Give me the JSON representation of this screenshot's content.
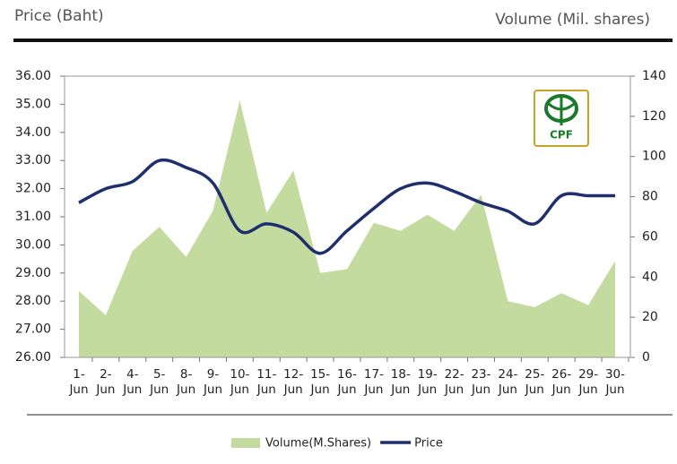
{
  "chart_data": {
    "type": "area-line",
    "left_axis_title": "Price (Baht)",
    "right_axis_title": "Volume (Mil. shares)",
    "logo_text": "CPF",
    "categories": [
      "1- Jun",
      "2- Jun",
      "4- Jun",
      "5- Jun",
      "8- Jun",
      "9- Jun",
      "10- Jun",
      "11- Jun",
      "12- Jun",
      "15- Jun",
      "16- Jun",
      "17- Jun",
      "18- Jun",
      "19- Jun",
      "22- Jun",
      "23- Jun",
      "24- Jun",
      "25- Jun",
      "26- Jun",
      "29- Jun",
      "30- Jun"
    ],
    "series": [
      {
        "name": "Volume(M.Shares)",
        "color": "#c4dba0",
        "axis": "y2",
        "kind": "area",
        "values": [
          33,
          21,
          53,
          65,
          50,
          73,
          128,
          72,
          93,
          42,
          44,
          67,
          63,
          71,
          63,
          81,
          28,
          25,
          32,
          26,
          48
        ]
      },
      {
        "name": "Price",
        "color": "#1f2f6e",
        "axis": "y",
        "kind": "line",
        "values": [
          31.5,
          32.0,
          32.25,
          33.0,
          32.75,
          32.2,
          30.5,
          30.75,
          30.45,
          29.7,
          30.5,
          31.3,
          32.0,
          32.2,
          31.9,
          31.5,
          31.2,
          30.75,
          31.75,
          31.75,
          31.75
        ]
      }
    ],
    "ylim": [
      26,
      36
    ],
    "yticks": [
      {
        "value": 26,
        "label": "26.00"
      },
      {
        "value": 27,
        "label": "27.00"
      },
      {
        "value": 28,
        "label": "28.00"
      },
      {
        "value": 29,
        "label": "29.00"
      },
      {
        "value": 30,
        "label": "30.00"
      },
      {
        "value": 31,
        "label": "31.00"
      },
      {
        "value": 32,
        "label": "32.00"
      },
      {
        "value": 33,
        "label": "33.00"
      },
      {
        "value": 34,
        "label": "34.00"
      },
      {
        "value": 35,
        "label": "35.00"
      },
      {
        "value": 36,
        "label": "36.00"
      }
    ],
    "y2lim": [
      0,
      140
    ],
    "y2ticks": [
      0,
      20,
      40,
      60,
      80,
      100,
      120,
      140
    ],
    "legend": "bottom"
  }
}
